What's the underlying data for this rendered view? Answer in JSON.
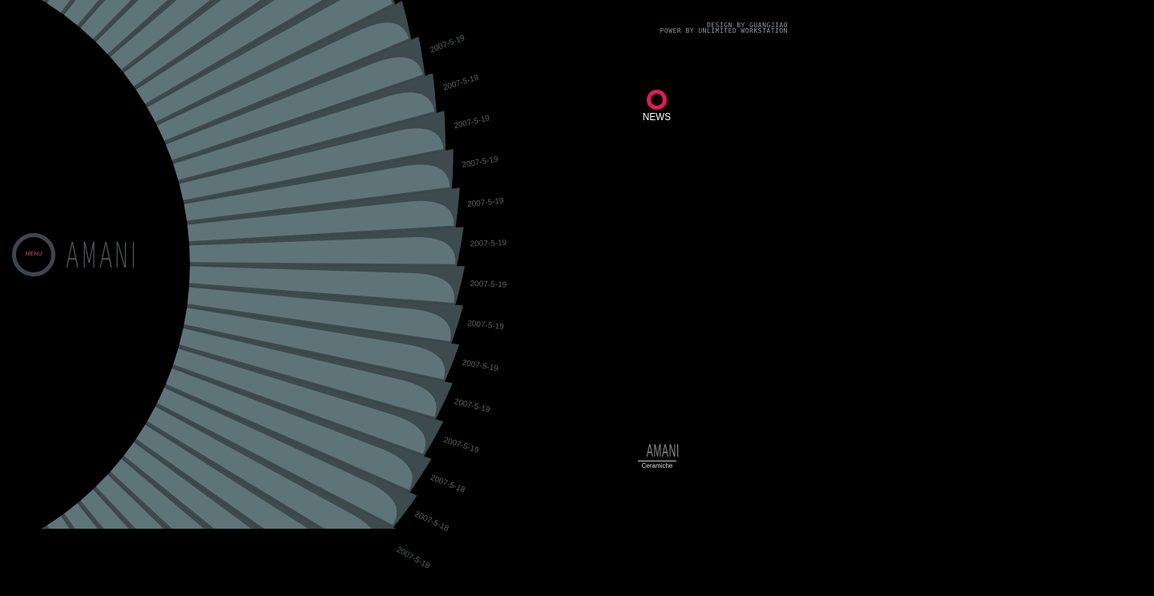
{
  "credits": {
    "line1": "DESIGN BY GUANGJIAO",
    "line2": "POWER BY UNLIMITED WORKSTATION"
  },
  "news": {
    "label": "NEWS",
    "color": "#e3195a"
  },
  "menu": {
    "label": "MENU"
  },
  "logo": {
    "text": "AMANI"
  },
  "footer_logo": {
    "brand": "AMANI",
    "sub": "Ceramiche"
  },
  "fan": {
    "light": "#5f7479",
    "dark": "#3d4a4e",
    "dates": [
      "2007-5-19",
      "2007-5-19",
      "2007-5-19",
      "2007-5-19",
      "2007-5-19",
      "2007-5-19",
      "2007-5-19",
      "2007-5-19",
      "2007-5-19",
      "2007-5-19",
      "2007-5-19",
      "2007-5-18",
      "2007-5-18",
      "2007-5-18"
    ]
  }
}
